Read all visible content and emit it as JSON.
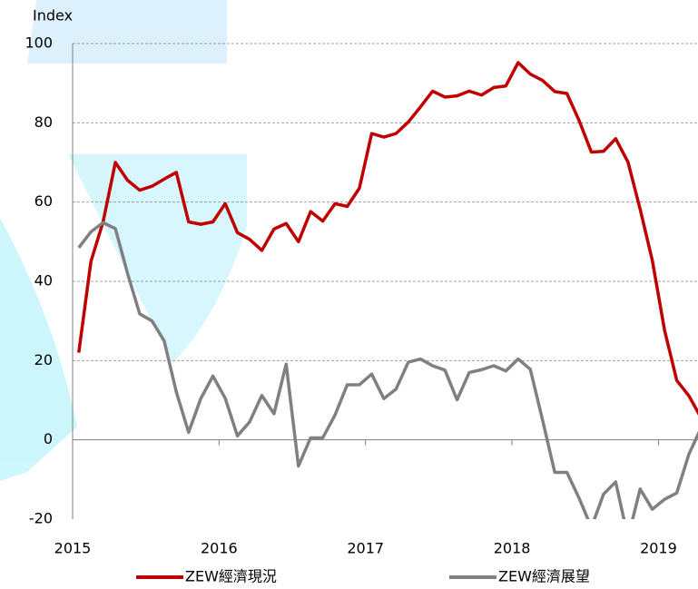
{
  "chart_data": {
    "type": "line",
    "y_label": "Index",
    "x": [
      2015.042,
      2015.125,
      2015.208,
      2015.292,
      2015.375,
      2015.458,
      2015.542,
      2015.625,
      2015.708,
      2015.792,
      2015.875,
      2015.958,
      2016.042,
      2016.125,
      2016.208,
      2016.292,
      2016.375,
      2016.458,
      2016.542,
      2016.625,
      2016.708,
      2016.792,
      2016.875,
      2016.958,
      2017.042,
      2017.125,
      2017.208,
      2017.292,
      2017.375,
      2017.458,
      2017.542,
      2017.625,
      2017.708,
      2017.792,
      2017.875,
      2017.958,
      2018.042,
      2018.125,
      2018.208,
      2018.292,
      2018.375,
      2018.458,
      2018.542,
      2018.625,
      2018.708,
      2018.792,
      2018.875,
      2018.958,
      2019.042,
      2019.125,
      2019.208,
      2019.292
    ],
    "series": [
      {
        "name": "ZEW經濟現況",
        "color": "#c00000",
        "values": [
          22,
          45,
          55,
          70,
          65.5,
          63,
          64,
          65.8,
          67.5,
          55,
          54.4,
          55,
          59.6,
          52.3,
          50.6,
          47.8,
          53.2,
          54.6,
          50,
          57.6,
          55.2,
          59.6,
          58.9,
          63.5,
          77.3,
          76.4,
          77.3,
          80.2,
          84,
          88,
          86.5,
          86.8,
          88,
          87,
          88.9,
          89.3,
          95.2,
          92.3,
          90.7,
          87.9,
          87.4,
          80.6,
          72.6,
          72.8,
          76,
          70.1,
          58.2,
          45.3,
          27.6,
          15,
          11.1,
          5.5
        ]
      },
      {
        "name": "ZEW經濟展望",
        "color": "#808080",
        "values": [
          48.5,
          52.5,
          54.8,
          53.3,
          42,
          31.8,
          30,
          25,
          12.1,
          1.9,
          10.4,
          16.1,
          10.5,
          1,
          4.5,
          11.2,
          6.6,
          19.1,
          -6.6,
          0.5,
          0.5,
          6.3,
          13.9,
          13.9,
          16.6,
          10.4,
          12.8,
          19.6,
          20.4,
          18.7,
          17.6,
          10.1,
          17,
          17.7,
          18.7,
          17.4,
          20.4,
          17.8,
          5.1,
          -8.2,
          -8.2,
          -14.7,
          -22.1,
          -13.7,
          -10.6,
          -24.7,
          -12.4,
          -17.5,
          -15,
          -13.4,
          -3.6,
          3.1
        ]
      }
    ],
    "xlim": [
      2015,
      2019.27
    ],
    "xticks": [
      2015,
      2016,
      2017,
      2018,
      2019
    ],
    "ylim": [
      -20,
      100
    ],
    "yticks": [
      -20,
      0,
      20,
      40,
      60,
      80,
      100
    ],
    "grid": true
  }
}
